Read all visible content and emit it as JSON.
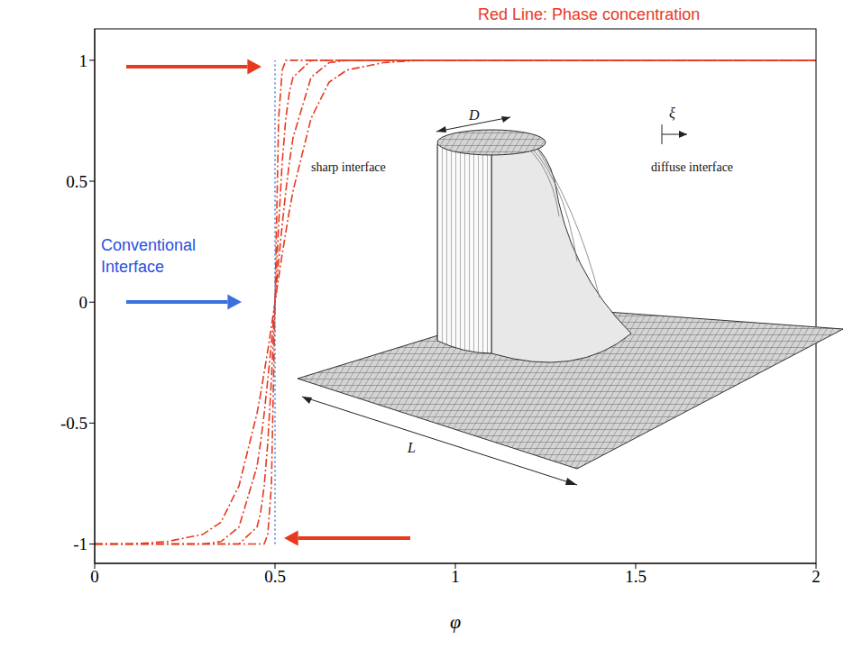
{
  "chart_data": {
    "type": "line",
    "title": "Red Line: Phase concentration",
    "x_label": "φ",
    "xlim": [
      0,
      2
    ],
    "ylim": [
      -1.08,
      1.13
    ],
    "xticks": [
      0,
      0.5,
      1,
      1.5,
      2
    ],
    "yticks": [
      -1,
      -0.5,
      0,
      0.5,
      1
    ],
    "x": [
      0,
      0.1,
      0.2,
      0.3,
      0.35,
      0.4,
      0.45,
      0.46,
      0.47,
      0.48,
      0.49,
      0.5,
      0.51,
      0.52,
      0.53,
      0.54,
      0.55,
      0.6,
      0.65,
      0.7,
      0.8,
      0.9,
      1,
      1.5,
      2
    ],
    "series": [
      {
        "color": "#e8391f",
        "line_style": "dashdot",
        "values": [
          -1,
          -1,
          -0.99,
          -0.96,
          -0.91,
          -0.76,
          -0.46,
          -0.38,
          -0.29,
          -0.2,
          -0.1,
          0,
          0.1,
          0.2,
          0.29,
          0.38,
          0.46,
          0.76,
          0.91,
          0.96,
          0.99,
          1,
          1,
          1,
          1
        ]
      },
      {
        "color": "#e8391f",
        "line_style": "dashdot",
        "values": [
          -1,
          -1,
          -1,
          -1,
          -0.99,
          -0.93,
          -0.68,
          -0.58,
          -0.46,
          -0.32,
          -0.17,
          0,
          0.17,
          0.32,
          0.46,
          0.58,
          0.68,
          0.93,
          0.99,
          1,
          1,
          1,
          1,
          1,
          1
        ]
      },
      {
        "color": "#e8391f",
        "line_style": "dashdot",
        "values": [
          -1,
          -1,
          -1,
          -1,
          -1,
          -1,
          -0.93,
          -0.87,
          -0.76,
          -0.58,
          -0.32,
          0,
          0.32,
          0.58,
          0.76,
          0.87,
          0.93,
          1,
          1,
          1,
          1,
          1,
          1,
          1,
          1
        ]
      },
      {
        "color": "#e8391f",
        "line_style": "dashdot",
        "values": [
          -1,
          -1,
          -1,
          -1,
          -1,
          -1,
          -1,
          -1,
          -1,
          -0.96,
          -0.76,
          0,
          0.76,
          0.96,
          1,
          1,
          1,
          1,
          1,
          1,
          1,
          1,
          1,
          1,
          1
        ]
      },
      {
        "color": "#4a7fd0",
        "line_style": "dotted",
        "x": [
          0.5,
          0.5
        ],
        "values": [
          -1,
          1
        ]
      }
    ],
    "annotations": [
      {
        "text": "Conventional Interface",
        "color": "#2a4fe0"
      },
      {
        "text": "sharp interface"
      },
      {
        "text": "diffuse interface"
      },
      {
        "text": "D"
      },
      {
        "text": "ξ"
      },
      {
        "text": "L"
      }
    ]
  }
}
